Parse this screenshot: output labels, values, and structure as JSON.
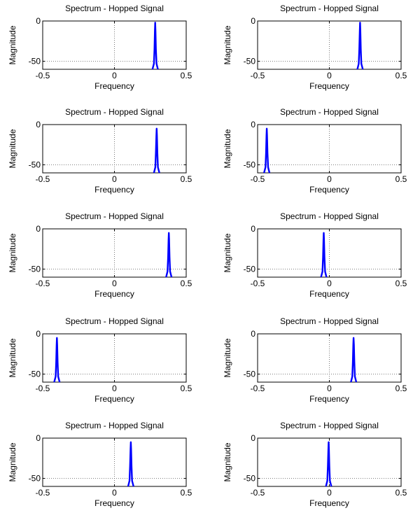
{
  "chart_data": [
    {
      "type": "line",
      "title": "Spectrum - Hopped Signal",
      "xlabel": "Frequency",
      "ylabel": "Magnitude",
      "xlim": [
        -0.5,
        0.5
      ],
      "ylim": [
        -60,
        0
      ],
      "xticks": [
        "-0.5",
        "0",
        "0.5"
      ],
      "yticks": [
        "-50",
        "0"
      ],
      "grid": "dotted",
      "x": [
        0.265,
        0.275,
        0.279,
        0.282,
        0.284,
        0.286,
        0.289,
        0.293,
        0.303
      ],
      "y": [
        -60,
        -53,
        -35,
        -12,
        -2,
        -12,
        -35,
        -53,
        -60
      ],
      "color": "#0000ff"
    },
    {
      "type": "line",
      "title": "Spectrum - Hopped Signal",
      "xlabel": "Frequency",
      "ylabel": "Magnitude",
      "xlim": [
        -0.5,
        0.5
      ],
      "ylim": [
        -60,
        0
      ],
      "xticks": [
        "-0.5",
        "0",
        "0.5"
      ],
      "yticks": [
        "-50",
        "0"
      ],
      "grid": "dotted",
      "x": [
        0.195,
        0.205,
        0.209,
        0.212,
        0.214,
        0.216,
        0.219,
        0.223,
        0.233
      ],
      "y": [
        -60,
        -53,
        -35,
        -12,
        -2,
        -12,
        -35,
        -53,
        -60
      ],
      "color": "#0000ff"
    },
    {
      "type": "line",
      "title": "Spectrum - Hopped Signal",
      "xlabel": "Frequency",
      "ylabel": "Magnitude",
      "xlim": [
        -0.5,
        0.5
      ],
      "ylim": [
        -60,
        0
      ],
      "xticks": [
        "-0.5",
        "0",
        "0.5"
      ],
      "yticks": [
        "-50",
        "0"
      ],
      "grid": "dotted",
      "x": [
        0.275,
        0.285,
        0.289,
        0.292,
        0.294,
        0.296,
        0.299,
        0.303,
        0.313
      ],
      "y": [
        -60,
        -53,
        -35,
        -14,
        -5,
        -14,
        -35,
        -53,
        -60
      ],
      "color": "#0000ff"
    },
    {
      "type": "line",
      "title": "Spectrum - Hopped Signal",
      "xlabel": "Frequency",
      "ylabel": "Magnitude",
      "xlim": [
        -0.5,
        0.5
      ],
      "ylim": [
        -60,
        0
      ],
      "xticks": [
        "-0.5",
        "0",
        "0.5"
      ],
      "yticks": [
        "-50",
        "0"
      ],
      "grid": "dotted",
      "x": [
        -0.455,
        -0.445,
        -0.441,
        -0.438,
        -0.436,
        -0.434,
        -0.431,
        -0.427,
        -0.417
      ],
      "y": [
        -60,
        -53,
        -35,
        -14,
        -5,
        -14,
        -35,
        -53,
        -60
      ],
      "color": "#0000ff"
    },
    {
      "type": "line",
      "title": "Spectrum - Hopped Signal",
      "xlabel": "Frequency",
      "ylabel": "Magnitude",
      "xlim": [
        -0.5,
        0.5
      ],
      "ylim": [
        -60,
        0
      ],
      "xticks": [
        "-0.5",
        "0",
        "0.5"
      ],
      "yticks": [
        "-50",
        "0"
      ],
      "grid": "dotted",
      "x": [
        0.36,
        0.37,
        0.374,
        0.377,
        0.379,
        0.381,
        0.384,
        0.388,
        0.398
      ],
      "y": [
        -60,
        -53,
        -35,
        -14,
        -5,
        -14,
        -35,
        -53,
        -60
      ],
      "color": "#0000ff"
    },
    {
      "type": "line",
      "title": "Spectrum - Hopped Signal",
      "xlabel": "Frequency",
      "ylabel": "Magnitude",
      "xlim": [
        -0.5,
        0.5
      ],
      "ylim": [
        -60,
        0
      ],
      "xticks": [
        "-0.5",
        "0",
        "0.5"
      ],
      "yticks": [
        "-50",
        "0"
      ],
      "grid": "dotted",
      "x": [
        -0.058,
        -0.048,
        -0.044,
        -0.041,
        -0.039,
        -0.037,
        -0.034,
        -0.03,
        -0.02
      ],
      "y": [
        -60,
        -53,
        -35,
        -14,
        -5,
        -14,
        -35,
        -53,
        -60
      ],
      "color": "#0000ff"
    },
    {
      "type": "line",
      "title": "Spectrum - Hopped Signal",
      "xlabel": "Frequency",
      "ylabel": "Magnitude",
      "xlim": [
        -0.5,
        0.5
      ],
      "ylim": [
        -60,
        0
      ],
      "xticks": [
        "-0.5",
        "0",
        "0.5"
      ],
      "yticks": [
        "-50",
        "0"
      ],
      "grid": "dotted",
      "x": [
        -0.42,
        -0.41,
        -0.406,
        -0.403,
        -0.401,
        -0.399,
        -0.396,
        -0.392,
        -0.382
      ],
      "y": [
        -60,
        -53,
        -35,
        -14,
        -5,
        -14,
        -35,
        -53,
        -60
      ],
      "color": "#0000ff"
    },
    {
      "type": "line",
      "title": "Spectrum - Hopped Signal",
      "xlabel": "Frequency",
      "ylabel": "Magnitude",
      "xlim": [
        -0.5,
        0.5
      ],
      "ylim": [
        -60,
        0
      ],
      "xticks": [
        "-0.5",
        "0",
        "0.5"
      ],
      "yticks": [
        "-50",
        "0"
      ],
      "grid": "dotted",
      "x": [
        0.15,
        0.16,
        0.164,
        0.167,
        0.169,
        0.171,
        0.174,
        0.178,
        0.188
      ],
      "y": [
        -60,
        -53,
        -35,
        -14,
        -5,
        -14,
        -35,
        -53,
        -60
      ],
      "color": "#0000ff"
    },
    {
      "type": "line",
      "title": "Spectrum - Hopped Signal",
      "xlabel": "Frequency",
      "ylabel": "Magnitude",
      "xlim": [
        -0.5,
        0.5
      ],
      "ylim": [
        -60,
        0
      ],
      "xticks": [
        "-0.5",
        "0",
        "0.5"
      ],
      "yticks": [
        "-50",
        "0"
      ],
      "grid": "dotted",
      "x": [
        0.095,
        0.105,
        0.109,
        0.112,
        0.114,
        0.116,
        0.119,
        0.123,
        0.133
      ],
      "y": [
        -60,
        -53,
        -35,
        -14,
        -5,
        -14,
        -35,
        -53,
        -60
      ],
      "color": "#0000ff"
    },
    {
      "type": "line",
      "title": "Spectrum - Hopped Signal",
      "xlabel": "Frequency",
      "ylabel": "Magnitude",
      "xlim": [
        -0.5,
        0.5
      ],
      "ylim": [
        -60,
        0
      ],
      "xticks": [
        "-0.5",
        "0",
        "0.5"
      ],
      "yticks": [
        "-50",
        "0"
      ],
      "grid": "dotted",
      "x": [
        -0.024,
        -0.014,
        -0.01,
        -0.007,
        -0.005,
        -0.003,
        0,
        0.004,
        0.014
      ],
      "y": [
        -60,
        -53,
        -35,
        -14,
        -5,
        -14,
        -35,
        -53,
        -60
      ],
      "color": "#0000ff"
    }
  ]
}
